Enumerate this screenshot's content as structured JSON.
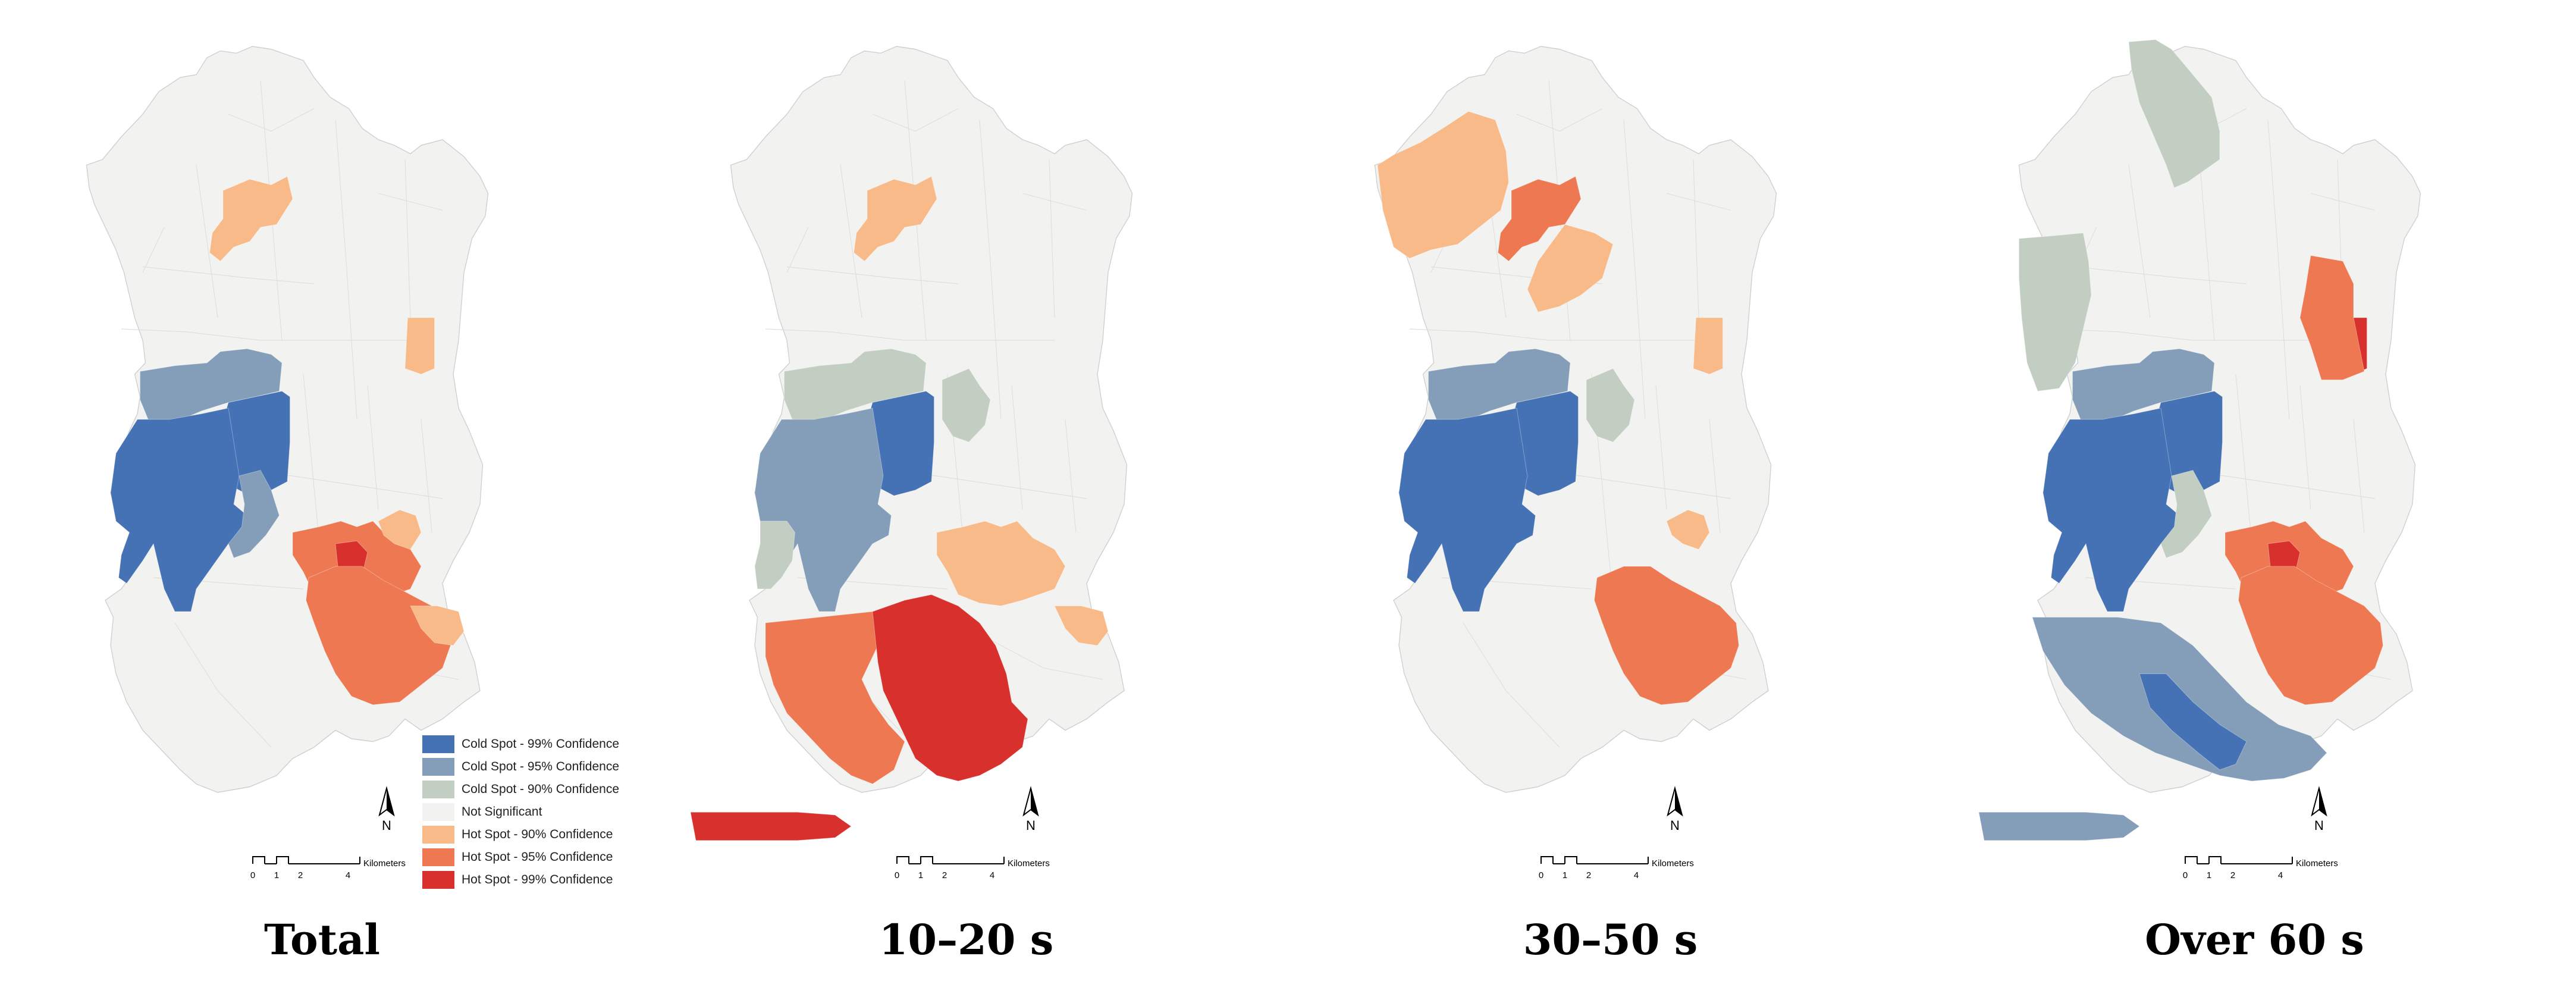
{
  "classes": [
    {
      "key": "cs99",
      "label": "Cold Spot - 99% Confidence",
      "color": "#4472B4"
    },
    {
      "key": "cs95",
      "label": "Cold Spot - 95% Confidence",
      "color": "#849EBA"
    },
    {
      "key": "cs90",
      "label": "Cold Spot - 90% Confidence",
      "color": "#C2CEC2"
    },
    {
      "key": "ns",
      "label": "Not Significant",
      "color": "#F2F2F0"
    },
    {
      "key": "hs90",
      "label": "Hot Spot - 90% Confidence",
      "color": "#F8BA88"
    },
    {
      "key": "hs95",
      "label": "Hot Spot - 95% Confidence",
      "color": "#EE7852"
    },
    {
      "key": "hs99",
      "label": "Hot Spot - 99% Confidence",
      "color": "#D8302C"
    }
  ],
  "north_label": "N",
  "scale_bar": {
    "ticks": [
      "0",
      "1",
      "2",
      "4"
    ],
    "unit": "Kilometers"
  },
  "panels": [
    {
      "title": "Total",
      "regions": [
        {
          "id": "north-mid",
          "cls": "hs90"
        },
        {
          "id": "east-upper",
          "cls": "hs90"
        },
        {
          "id": "west-upper",
          "cls": "cs95"
        },
        {
          "id": "central-west",
          "cls": "cs99"
        },
        {
          "id": "harbor",
          "cls": "cs99"
        },
        {
          "id": "harbor-east",
          "cls": "cs95"
        },
        {
          "id": "center",
          "cls": "hs95"
        },
        {
          "id": "center-core",
          "cls": "hs99"
        },
        {
          "id": "center-east",
          "cls": "hs90"
        },
        {
          "id": "south-east",
          "cls": "hs95"
        },
        {
          "id": "south-east-edge",
          "cls": "hs90"
        }
      ]
    },
    {
      "title": "10–20 s",
      "regions": [
        {
          "id": "north-mid",
          "cls": "hs90"
        },
        {
          "id": "west-upper",
          "cls": "cs90"
        },
        {
          "id": "central-west",
          "cls": "cs99"
        },
        {
          "id": "harbor",
          "cls": "cs95"
        },
        {
          "id": "harbor-south",
          "cls": "cs90"
        },
        {
          "id": "center-north",
          "cls": "cs90"
        },
        {
          "id": "center-core",
          "cls": "hs99"
        },
        {
          "id": "center",
          "cls": "hs90"
        },
        {
          "id": "south-west",
          "cls": "hs95"
        },
        {
          "id": "south-core",
          "cls": "hs99"
        },
        {
          "id": "south-east-edge",
          "cls": "hs90"
        },
        {
          "id": "south-tail",
          "cls": "hs99"
        }
      ]
    },
    {
      "title": "30–50 s",
      "regions": [
        {
          "id": "north-west",
          "cls": "hs90"
        },
        {
          "id": "north-mid",
          "cls": "hs95"
        },
        {
          "id": "north-mid-south",
          "cls": "hs90"
        },
        {
          "id": "east-upper",
          "cls": "hs90"
        },
        {
          "id": "west-upper",
          "cls": "cs95"
        },
        {
          "id": "central-west",
          "cls": "cs99"
        },
        {
          "id": "harbor",
          "cls": "cs99"
        },
        {
          "id": "center-north",
          "cls": "cs90"
        },
        {
          "id": "center-east",
          "cls": "hs90"
        },
        {
          "id": "south-east",
          "cls": "hs95"
        }
      ]
    },
    {
      "title": "Over 60 s",
      "regions": [
        {
          "id": "north-top",
          "cls": "cs90"
        },
        {
          "id": "west-mid",
          "cls": "cs90"
        },
        {
          "id": "east-upper",
          "cls": "hs99"
        },
        {
          "id": "east-upper-ring",
          "cls": "hs95"
        },
        {
          "id": "central-west",
          "cls": "cs99"
        },
        {
          "id": "west-upper",
          "cls": "cs95"
        },
        {
          "id": "harbor",
          "cls": "cs99"
        },
        {
          "id": "harbor-east",
          "cls": "cs90"
        },
        {
          "id": "center",
          "cls": "hs95"
        },
        {
          "id": "center-core",
          "cls": "hs99"
        },
        {
          "id": "south-east",
          "cls": "hs95"
        },
        {
          "id": "south-long",
          "cls": "cs95"
        },
        {
          "id": "south-band",
          "cls": "cs99"
        },
        {
          "id": "south-tail",
          "cls": "cs95"
        }
      ]
    }
  ]
}
